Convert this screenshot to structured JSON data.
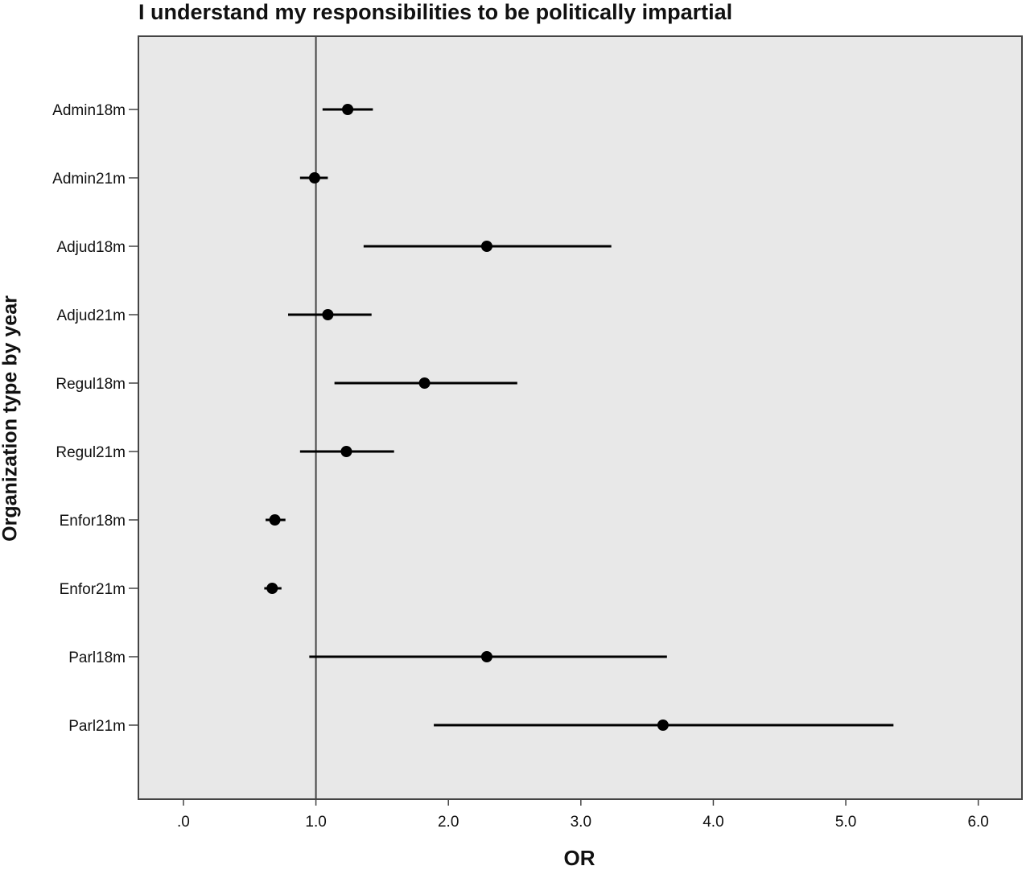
{
  "chart_data": {
    "type": "forest",
    "title": "I understand my responsibilities to be politically impartial",
    "x_label": "OR",
    "y_label": "Organization type by year",
    "categories": [
      "Admin18m",
      "Admin21m",
      "Adjud18m",
      "Adjud21m",
      "Regul18m",
      "Regul21m",
      "Enfor18m",
      "Enfor21m",
      "Parl18m",
      "Parl21m"
    ],
    "values": [
      1.24,
      0.99,
      2.29,
      1.09,
      1.82,
      1.23,
      0.69,
      0.67,
      2.29,
      3.62
    ],
    "lower": [
      1.05,
      0.88,
      1.36,
      0.79,
      1.14,
      0.88,
      0.62,
      0.61,
      0.95,
      1.89
    ],
    "upper": [
      1.43,
      1.09,
      3.23,
      1.42,
      2.52,
      1.59,
      0.77,
      0.74,
      3.65,
      5.36
    ],
    "color": "#000000",
    "reference_line": 1,
    "xlim": [
      -0.34,
      6.33
    ],
    "xticks": [
      {
        "value": 0,
        "label": ".0"
      },
      {
        "value": 1,
        "label": "1.0"
      },
      {
        "value": 2,
        "label": "2.0"
      },
      {
        "value": 3,
        "label": "3.0"
      },
      {
        "value": 4,
        "label": "4.0"
      },
      {
        "value": 5,
        "label": "5.0"
      },
      {
        "value": 6,
        "label": "6.0"
      }
    ]
  }
}
